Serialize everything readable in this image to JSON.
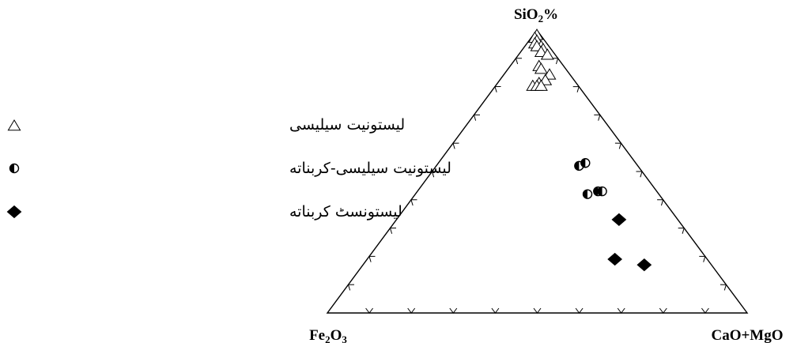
{
  "chart_data": {
    "type": "scatter",
    "subtype": "ternary",
    "title": "",
    "vertices": {
      "top": {
        "label_main": "SiO",
        "label_sub": "2",
        "label_after": "%"
      },
      "left": {
        "label_main": "Fe",
        "label_sub": "2",
        "label_main2": "O",
        "label_sub2": "3"
      },
      "right": {
        "label_main": "CaO+MgO"
      }
    },
    "ticks_per_side": 9,
    "grid": false,
    "legend_position": "left",
    "series": [
      {
        "name": "لیستونیت سیلیسی",
        "marker": "open-triangle",
        "points": [
          {
            "SiO2": 0.98,
            "Fe2O3": 0.01,
            "CaO+MgO": 0.01
          },
          {
            "SiO2": 0.97,
            "Fe2O3": 0.02,
            "CaO+MgO": 0.01
          },
          {
            "SiO2": 0.96,
            "Fe2O3": 0.02,
            "CaO+MgO": 0.02
          },
          {
            "SiO2": 0.95,
            "Fe2O3": 0.03,
            "CaO+MgO": 0.02
          },
          {
            "SiO2": 0.94,
            "Fe2O3": 0.02,
            "CaO+MgO": 0.04
          },
          {
            "SiO2": 0.94,
            "Fe2O3": 0.03,
            "CaO+MgO": 0.03
          },
          {
            "SiO2": 0.93,
            "Fe2O3": 0.02,
            "CaO+MgO": 0.05
          },
          {
            "SiO2": 0.92,
            "Fe2O3": 0.03,
            "CaO+MgO": 0.05
          },
          {
            "SiO2": 0.91,
            "Fe2O3": 0.02,
            "CaO+MgO": 0.07
          },
          {
            "SiO2": 0.87,
            "Fe2O3": 0.06,
            "CaO+MgO": 0.07
          },
          {
            "SiO2": 0.86,
            "Fe2O3": 0.06,
            "CaO+MgO": 0.08
          },
          {
            "SiO2": 0.84,
            "Fe2O3": 0.05,
            "CaO+MgO": 0.11
          },
          {
            "SiO2": 0.82,
            "Fe2O3": 0.07,
            "CaO+MgO": 0.11
          },
          {
            "SiO2": 0.81,
            "Fe2O3": 0.09,
            "CaO+MgO": 0.1
          },
          {
            "SiO2": 0.8,
            "Fe2O3": 0.11,
            "CaO+MgO": 0.09
          },
          {
            "SiO2": 0.8,
            "Fe2O3": 0.1,
            "CaO+MgO": 0.1
          },
          {
            "SiO2": 0.8,
            "Fe2O3": 0.09,
            "CaO+MgO": 0.11
          }
        ]
      },
      {
        "name": "لیستونیت سیلیسی-کربناته",
        "marker": "half-filled-circle",
        "points": [
          {
            "SiO2": 0.52,
            "Fe2O3": 0.14,
            "CaO+MgO": 0.34
          },
          {
            "SiO2": 0.53,
            "Fe2O3": 0.12,
            "CaO+MgO": 0.35
          },
          {
            "SiO2": 0.42,
            "Fe2O3": 0.17,
            "CaO+MgO": 0.41
          },
          {
            "SiO2": 0.43,
            "Fe2O3": 0.14,
            "CaO+MgO": 0.43
          },
          {
            "SiO2": 0.43,
            "Fe2O3": 0.13,
            "CaO+MgO": 0.44
          }
        ]
      },
      {
        "name": "لیستونسٹ کربناته",
        "marker": "filled-diamond",
        "points": [
          {
            "SiO2": 0.33,
            "Fe2O3": 0.14,
            "CaO+MgO": 0.53
          },
          {
            "SiO2": 0.19,
            "Fe2O3": 0.22,
            "CaO+MgO": 0.59
          },
          {
            "SiO2": 0.17,
            "Fe2O3": 0.16,
            "CaO+MgO": 0.67
          }
        ]
      }
    ]
  }
}
